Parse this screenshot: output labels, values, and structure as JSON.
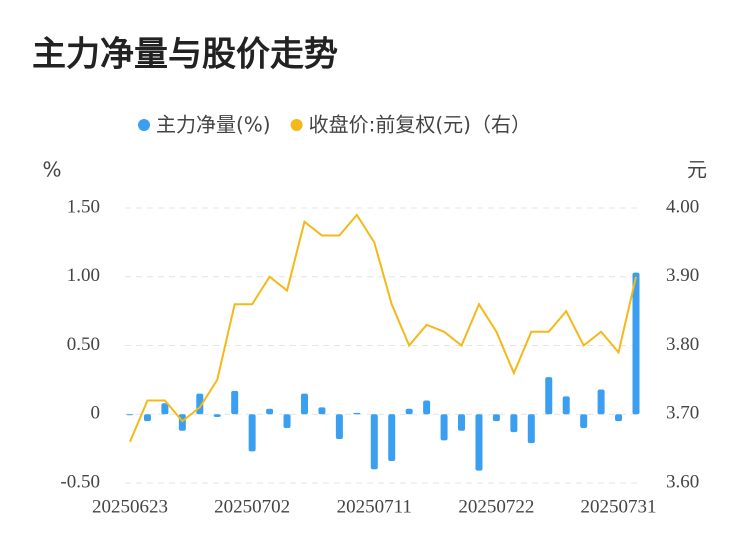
{
  "chart_data": {
    "type": "bar-line",
    "title": "主力净量与股价走势",
    "y_label": "%",
    "y2_label": "元",
    "categories": [
      "20250623",
      null,
      null,
      null,
      null,
      null,
      null,
      "20250702",
      null,
      null,
      null,
      null,
      null,
      null,
      "20250711",
      null,
      null,
      null,
      null,
      null,
      null,
      "20250722",
      null,
      null,
      null,
      null,
      null,
      null,
      "20250731",
      null
    ],
    "series": [
      {
        "name": "主力净量(%)",
        "color": "#3a9ff0",
        "type": "bar",
        "axis": "y",
        "values": [
          0.0,
          -0.05,
          0.08,
          -0.12,
          0.15,
          -0.02,
          0.17,
          -0.27,
          0.04,
          -0.1,
          0.15,
          0.05,
          -0.18,
          0.01,
          -0.4,
          -0.34,
          0.04,
          0.1,
          -0.19,
          -0.12,
          -0.41,
          -0.05,
          -0.13,
          -0.21,
          0.27,
          0.13,
          -0.1,
          0.18,
          -0.05,
          1.03
        ]
      },
      {
        "name": "收盘价:前复权(元)（右）",
        "color": "#f5b819",
        "type": "line",
        "axis": "y2",
        "values": [
          3.66,
          3.72,
          3.72,
          3.69,
          3.71,
          3.75,
          3.86,
          3.86,
          3.9,
          3.88,
          3.98,
          3.96,
          3.96,
          3.99,
          3.95,
          3.86,
          3.8,
          3.83,
          3.82,
          3.8,
          3.86,
          3.82,
          3.76,
          3.82,
          3.82,
          3.85,
          3.8,
          3.82,
          3.79,
          3.9
        ]
      }
    ],
    "ylim": [
      -0.5,
      1.5
    ],
    "yticks": [
      {
        "value": -0.5,
        "label": "-0.50"
      },
      0,
      {
        "value": 0.5,
        "label": "0.50"
      },
      {
        "value": 1,
        "label": "1.00"
      },
      {
        "value": 1.5,
        "label": "1.50"
      }
    ],
    "y2lim": [
      3.6,
      4.0
    ],
    "y2ticks": [
      {
        "value": 3.6,
        "label": "3.60"
      },
      {
        "value": 3.7,
        "label": "3.70"
      },
      {
        "value": 3.8,
        "label": "3.80"
      },
      {
        "value": 3.9,
        "label": "3.90"
      },
      {
        "value": 4.0,
        "label": "4.00"
      }
    ],
    "grid": true,
    "legend": "top"
  }
}
